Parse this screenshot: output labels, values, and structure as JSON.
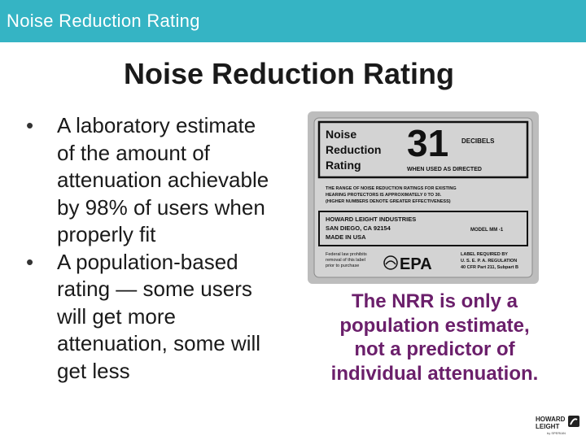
{
  "header": {
    "title": "Noise Reduction Rating"
  },
  "slide": {
    "title": "Noise Reduction Rating",
    "bullets": [
      {
        "bullet": "•",
        "lines": [
          "A laboratory estimate",
          "of the amount of",
          "attenuation achievable",
          "by 98% of users when",
          "properly fit"
        ]
      },
      {
        "bullet": "•",
        "lines": [
          "A population-based",
          "rating — some users",
          "will get more",
          "attenuation, some will",
          "get less"
        ]
      }
    ],
    "callout_lines": [
      "The NRR is only a",
      "population estimate,",
      "not a predictor of",
      "individual attenuation."
    ]
  },
  "nrr_label": {
    "heading_lines": [
      "Noise",
      "Reduction",
      "Rating"
    ],
    "number": "31",
    "decibels": "DECIBELS",
    "when_used": "WHEN USED AS DIRECTED",
    "range_lines": [
      "THE RANGE OF NOISE REDUCTION RATINGS FOR EXISTING",
      "HEARING PROTECTORS IS APPROXIMATELY 0 TO 30.",
      "(HIGHER NUMBERS DENOTE GREATER EFFECTIVENESS)"
    ],
    "maker_lines": [
      "HOWARD LEIGHT INDUSTRIES",
      "SAN DIEGO, CA 92154",
      "MADE IN USA"
    ],
    "model": "MODEL MM -1",
    "fed_lines": [
      "Federal law prohibits",
      "removal of this label",
      "prior to purchase"
    ],
    "epa": "EPA",
    "req_lines": [
      "LABEL REQUIRED BY",
      "U. S. E. P. A. REGULATION",
      "40 CFR Part 211, Subpart B"
    ]
  },
  "logo": {
    "lines": [
      "HOWARD",
      "LEIGHT"
    ],
    "sub": "by SPERIAN",
    "icon": "earplug-icon"
  },
  "colors": {
    "header_bar": "#35b4c4",
    "callout_text": "#6b1f6b",
    "label_bg": "#bdbdbd"
  }
}
